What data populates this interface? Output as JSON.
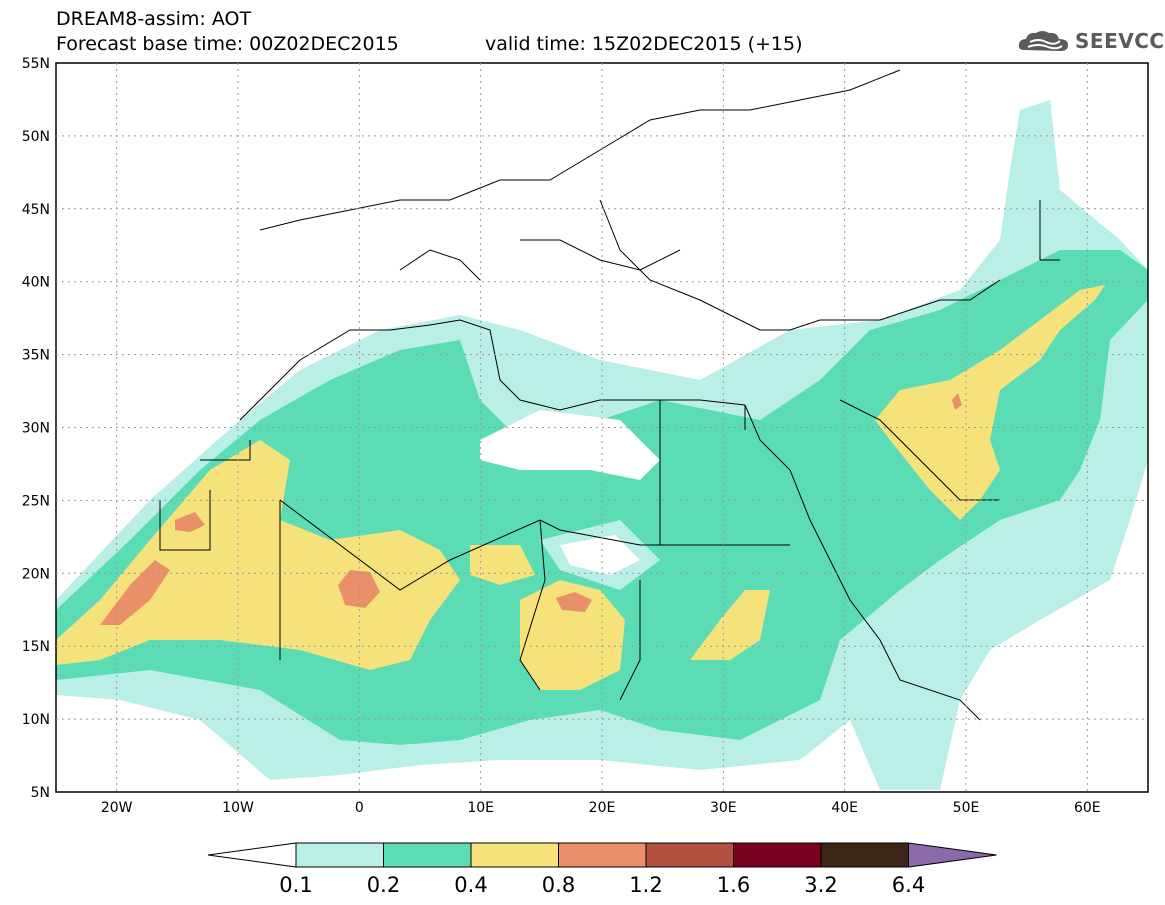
{
  "title": {
    "line1": "DREAM8-assim: AOT",
    "line2": "Forecast base time: 00Z02DEC2015",
    "valid": "valid time: 15Z02DEC2015 (+15)"
  },
  "logo": {
    "text": "SEEVCCC",
    "icon": "cloud-icon"
  },
  "map": {
    "lat_labels": [
      "55N",
      "50N",
      "45N",
      "40N",
      "35N",
      "30N",
      "25N",
      "20N",
      "15N",
      "10N",
      "5N"
    ],
    "lon_labels": [
      "20W",
      "10W",
      "0",
      "10E",
      "20E",
      "30E",
      "40E",
      "50E",
      "60E"
    ],
    "lon_range": [
      -25,
      65
    ],
    "lat_range": [
      5,
      55
    ]
  },
  "colorbar": {
    "levels": [
      "0.1",
      "0.2",
      "0.4",
      "0.8",
      "1.2",
      "1.6",
      "3.2",
      "6.4"
    ],
    "colors": [
      "#ffffff",
      "#b9efe7",
      "#5cdcb5",
      "#f6e27a",
      "#e9906a",
      "#b2513f",
      "#7a0020",
      "#3c2416",
      "#8a6aa8"
    ]
  }
}
